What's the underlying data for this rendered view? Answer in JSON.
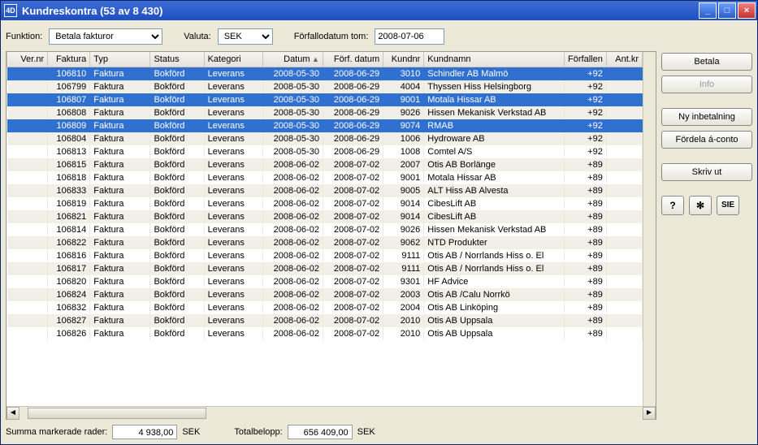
{
  "window": {
    "title": "Kundreskontra (53 av 8 430)"
  },
  "toolbar": {
    "function_label": "Funktion:",
    "function_value": "Betala fakturor",
    "currency_label": "Valuta:",
    "currency_value": "SEK",
    "duedate_label": "Förfallodatum tom:",
    "duedate_value": "2008-07-06"
  },
  "columns": [
    {
      "key": "ver",
      "label": "Ver.nr",
      "align": "right"
    },
    {
      "key": "faktura",
      "label": "Faktura",
      "align": "right"
    },
    {
      "key": "typ",
      "label": "Typ",
      "align": "left"
    },
    {
      "key": "status",
      "label": "Status",
      "align": "left"
    },
    {
      "key": "kategori",
      "label": "Kategori",
      "align": "left"
    },
    {
      "key": "datum",
      "label": "Datum",
      "align": "right",
      "sorted": true
    },
    {
      "key": "forfdatum",
      "label": "Förf. datum",
      "align": "right"
    },
    {
      "key": "kundnr",
      "label": "Kundnr",
      "align": "right"
    },
    {
      "key": "kundnamn",
      "label": "Kundnamn",
      "align": "left"
    },
    {
      "key": "forfallen",
      "label": "Förfallen",
      "align": "right"
    },
    {
      "key": "antkr",
      "label": "Ant.kr",
      "align": "right"
    }
  ],
  "rows": [
    {
      "sel": true,
      "ver": "",
      "faktura": "106810",
      "typ": "Faktura",
      "status": "Bokförd",
      "kategori": "Leverans",
      "datum": "2008-05-30",
      "forfdatum": "2008-06-29",
      "kundnr": "3010",
      "kundnamn": "Schindler AB Malmö",
      "forfallen": "+92",
      "antkr": ""
    },
    {
      "sel": false,
      "ver": "",
      "faktura": "106799",
      "typ": "Faktura",
      "status": "Bokförd",
      "kategori": "Leverans",
      "datum": "2008-05-30",
      "forfdatum": "2008-06-29",
      "kundnr": "4004",
      "kundnamn": "Thyssen Hiss Helsingborg",
      "forfallen": "+92",
      "antkr": ""
    },
    {
      "sel": true,
      "ver": "",
      "faktura": "106807",
      "typ": "Faktura",
      "status": "Bokförd",
      "kategori": "Leverans",
      "datum": "2008-05-30",
      "forfdatum": "2008-06-29",
      "kundnr": "9001",
      "kundnamn": "Motala Hissar AB",
      "forfallen": "+92",
      "antkr": ""
    },
    {
      "sel": false,
      "ver": "",
      "faktura": "106808",
      "typ": "Faktura",
      "status": "Bokförd",
      "kategori": "Leverans",
      "datum": "2008-05-30",
      "forfdatum": "2008-06-29",
      "kundnr": "9026",
      "kundnamn": "Hissen Mekanisk Verkstad AB",
      "forfallen": "+92",
      "antkr": ""
    },
    {
      "sel": true,
      "ver": "",
      "faktura": "106809",
      "typ": "Faktura",
      "status": "Bokförd",
      "kategori": "Leverans",
      "datum": "2008-05-30",
      "forfdatum": "2008-06-29",
      "kundnr": "9074",
      "kundnamn": "RMAB",
      "forfallen": "+92",
      "antkr": ""
    },
    {
      "sel": false,
      "ver": "",
      "faktura": "106804",
      "typ": "Faktura",
      "status": "Bokförd",
      "kategori": "Leverans",
      "datum": "2008-05-30",
      "forfdatum": "2008-06-29",
      "kundnr": "1006",
      "kundnamn": "Hydroware AB",
      "forfallen": "+92",
      "antkr": ""
    },
    {
      "sel": false,
      "ver": "",
      "faktura": "106813",
      "typ": "Faktura",
      "status": "Bokförd",
      "kategori": "Leverans",
      "datum": "2008-05-30",
      "forfdatum": "2008-06-29",
      "kundnr": "1008",
      "kundnamn": "Comtel A/S",
      "forfallen": "+92",
      "antkr": ""
    },
    {
      "sel": false,
      "ver": "",
      "faktura": "106815",
      "typ": "Faktura",
      "status": "Bokförd",
      "kategori": "Leverans",
      "datum": "2008-06-02",
      "forfdatum": "2008-07-02",
      "kundnr": "2007",
      "kundnamn": "Otis AB Borlänge",
      "forfallen": "+89",
      "antkr": ""
    },
    {
      "sel": false,
      "ver": "",
      "faktura": "106818",
      "typ": "Faktura",
      "status": "Bokförd",
      "kategori": "Leverans",
      "datum": "2008-06-02",
      "forfdatum": "2008-07-02",
      "kundnr": "9001",
      "kundnamn": "Motala Hissar AB",
      "forfallen": "+89",
      "antkr": ""
    },
    {
      "sel": false,
      "ver": "",
      "faktura": "106833",
      "typ": "Faktura",
      "status": "Bokförd",
      "kategori": "Leverans",
      "datum": "2008-06-02",
      "forfdatum": "2008-07-02",
      "kundnr": "9005",
      "kundnamn": "ALT Hiss AB Alvesta",
      "forfallen": "+89",
      "antkr": ""
    },
    {
      "sel": false,
      "ver": "",
      "faktura": "106819",
      "typ": "Faktura",
      "status": "Bokförd",
      "kategori": "Leverans",
      "datum": "2008-06-02",
      "forfdatum": "2008-07-02",
      "kundnr": "9014",
      "kundnamn": "CibesLift AB",
      "forfallen": "+89",
      "antkr": ""
    },
    {
      "sel": false,
      "ver": "",
      "faktura": "106821",
      "typ": "Faktura",
      "status": "Bokförd",
      "kategori": "Leverans",
      "datum": "2008-06-02",
      "forfdatum": "2008-07-02",
      "kundnr": "9014",
      "kundnamn": "CibesLift AB",
      "forfallen": "+89",
      "antkr": ""
    },
    {
      "sel": false,
      "ver": "",
      "faktura": "106814",
      "typ": "Faktura",
      "status": "Bokförd",
      "kategori": "Leverans",
      "datum": "2008-06-02",
      "forfdatum": "2008-07-02",
      "kundnr": "9026",
      "kundnamn": "Hissen Mekanisk Verkstad AB",
      "forfallen": "+89",
      "antkr": ""
    },
    {
      "sel": false,
      "ver": "",
      "faktura": "106822",
      "typ": "Faktura",
      "status": "Bokförd",
      "kategori": "Leverans",
      "datum": "2008-06-02",
      "forfdatum": "2008-07-02",
      "kundnr": "9062",
      "kundnamn": "NTD Produkter",
      "forfallen": "+89",
      "antkr": ""
    },
    {
      "sel": false,
      "ver": "",
      "faktura": "106816",
      "typ": "Faktura",
      "status": "Bokförd",
      "kategori": "Leverans",
      "datum": "2008-06-02",
      "forfdatum": "2008-07-02",
      "kundnr": "9111",
      "kundnamn": "Otis AB / Norrlands Hiss o. El",
      "forfallen": "+89",
      "antkr": ""
    },
    {
      "sel": false,
      "ver": "",
      "faktura": "106817",
      "typ": "Faktura",
      "status": "Bokförd",
      "kategori": "Leverans",
      "datum": "2008-06-02",
      "forfdatum": "2008-07-02",
      "kundnr": "9111",
      "kundnamn": "Otis AB / Norrlands Hiss o. El",
      "forfallen": "+89",
      "antkr": ""
    },
    {
      "sel": false,
      "ver": "",
      "faktura": "106820",
      "typ": "Faktura",
      "status": "Bokförd",
      "kategori": "Leverans",
      "datum": "2008-06-02",
      "forfdatum": "2008-07-02",
      "kundnr": "9301",
      "kundnamn": "HF Advice",
      "forfallen": "+89",
      "antkr": ""
    },
    {
      "sel": false,
      "ver": "",
      "faktura": "106824",
      "typ": "Faktura",
      "status": "Bokförd",
      "kategori": "Leverans",
      "datum": "2008-06-02",
      "forfdatum": "2008-07-02",
      "kundnr": "2003",
      "kundnamn": "Otis AB /Calu Norrkö",
      "forfallen": "+89",
      "antkr": ""
    },
    {
      "sel": false,
      "ver": "",
      "faktura": "106832",
      "typ": "Faktura",
      "status": "Bokförd",
      "kategori": "Leverans",
      "datum": "2008-06-02",
      "forfdatum": "2008-07-02",
      "kundnr": "2004",
      "kundnamn": "Otis AB Linköping",
      "forfallen": "+89",
      "antkr": ""
    },
    {
      "sel": false,
      "ver": "",
      "faktura": "106827",
      "typ": "Faktura",
      "status": "Bokförd",
      "kategori": "Leverans",
      "datum": "2008-06-02",
      "forfdatum": "2008-07-02",
      "kundnr": "2010",
      "kundnamn": "Otis AB Uppsala",
      "forfallen": "+89",
      "antkr": ""
    },
    {
      "sel": false,
      "ver": "",
      "faktura": "106826",
      "typ": "Faktura",
      "status": "Bokförd",
      "kategori": "Leverans",
      "datum": "2008-06-02",
      "forfdatum": "2008-07-02",
      "kundnr": "2010",
      "kundnamn": "Otis AB Uppsala",
      "forfallen": "+89",
      "antkr": ""
    }
  ],
  "summary": {
    "selected_label": "Summa markerade rader:",
    "selected_value": "4 938,00",
    "selected_currency": "SEK",
    "total_label": "Totalbelopp:",
    "total_value": "656 409,00",
    "total_currency": "SEK"
  },
  "buttons": {
    "betala": "Betala",
    "info": "Info",
    "ny": "Ny inbetalning",
    "fordela": "Fördela á-conto",
    "skriv": "Skriv ut",
    "help": "?",
    "gear": "✻",
    "sie": "SIE"
  }
}
